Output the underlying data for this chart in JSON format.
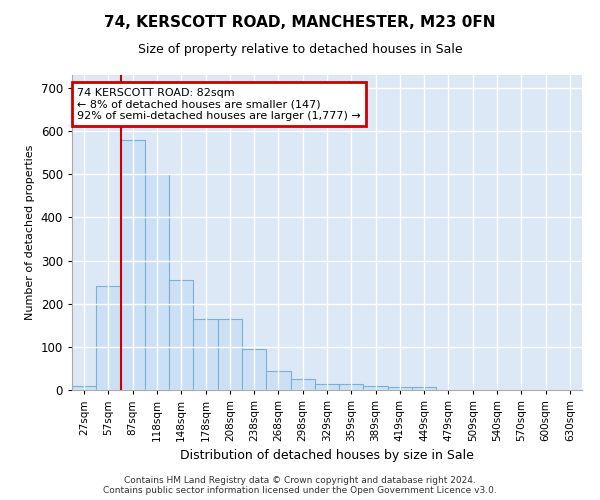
{
  "title": "74, KERSCOTT ROAD, MANCHESTER, M23 0FN",
  "subtitle": "Size of property relative to detached houses in Sale",
  "xlabel": "Distribution of detached houses by size in Sale",
  "ylabel": "Number of detached properties",
  "bar_color": "#cce0f5",
  "bar_edge_color": "#7ab0d8",
  "background_color": "#dce8f5",
  "annotation_box_color": "#ffffff",
  "annotation_border_color": "#cc0000",
  "red_line_color": "#cc0000",
  "categories": [
    "27sqm",
    "57sqm",
    "87sqm",
    "118sqm",
    "148sqm",
    "178sqm",
    "208sqm",
    "238sqm",
    "268sqm",
    "298sqm",
    "329sqm",
    "359sqm",
    "389sqm",
    "419sqm",
    "449sqm",
    "479sqm",
    "509sqm",
    "540sqm",
    "570sqm",
    "600sqm",
    "630sqm"
  ],
  "values": [
    10,
    240,
    580,
    500,
    255,
    165,
    165,
    95,
    43,
    25,
    15,
    15,
    10,
    8,
    8,
    0,
    0,
    0,
    0,
    0,
    0
  ],
  "ylim": [
    0,
    730
  ],
  "yticks": [
    0,
    100,
    200,
    300,
    400,
    500,
    600,
    700
  ],
  "red_line_x": 1.5,
  "annotation_text": "74 KERSCOTT ROAD: 82sqm\n← 8% of detached houses are smaller (147)\n92% of semi-detached houses are larger (1,777) →",
  "footer_line1": "Contains HM Land Registry data © Crown copyright and database right 2024.",
  "footer_line2": "Contains public sector information licensed under the Open Government Licence v3.0."
}
